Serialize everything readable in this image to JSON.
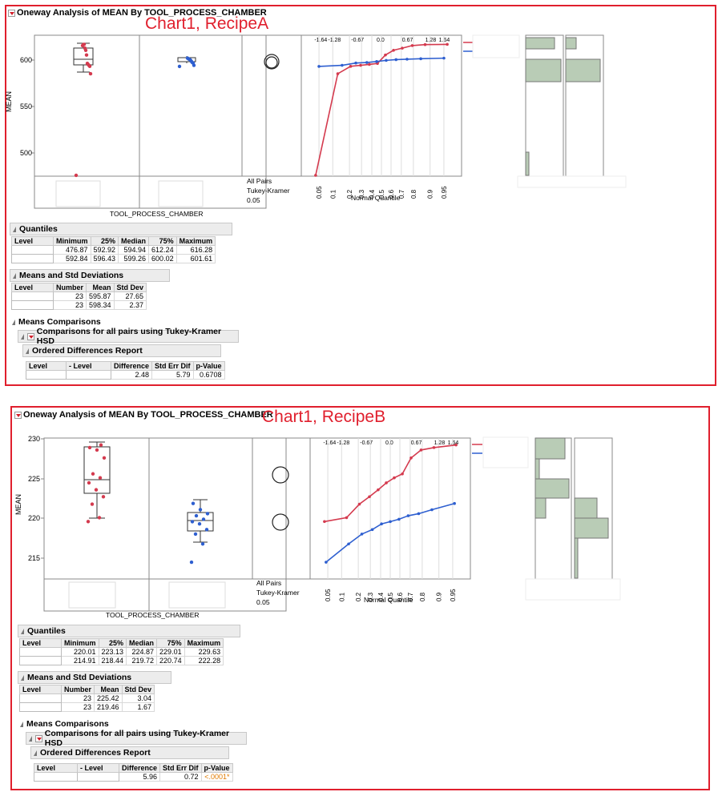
{
  "chartA": {
    "title": "Oneway Analysis of MEAN By TOOL_PROCESS_CHAMBER",
    "overlay": "Chart1, RecipeA",
    "y_axis_label": "MEAN",
    "y_ticks": [
      "600",
      "550",
      "500"
    ],
    "x_axis_label": "TOOL_PROCESS_CHAMBER",
    "comparison_label_1": "All Pairs",
    "comparison_label_2": "Tukey-Kramer",
    "alpha": "0.05",
    "normal_quantile_label": "Normal Quantile",
    "top_ticks": [
      "-1.64",
      "-1.28",
      "-0.67",
      "0.0",
      "0.67",
      "1.28",
      "1.64"
    ],
    "bottom_ticks": [
      "0.05",
      "0.1",
      "0.2",
      "0.3",
      "0.4",
      "0.5",
      "0.6",
      "0.7",
      "0.8",
      "0.9",
      "0.95"
    ],
    "quantiles": {
      "title": "Quantiles",
      "headers": [
        "Level",
        "Minimum",
        "25%",
        "Median",
        "75%",
        "Maximum"
      ],
      "rows": [
        [
          "",
          "476.87",
          "592.92",
          "594.94",
          "612.24",
          "616.28"
        ],
        [
          "",
          "592.84",
          "596.43",
          "599.26",
          "600.02",
          "601.61"
        ]
      ]
    },
    "means": {
      "title": "Means and Std Deviations",
      "headers": [
        "Level",
        "Number",
        "Mean",
        "Std Dev"
      ],
      "rows": [
        [
          "",
          "23",
          "595.87",
          "27.65"
        ],
        [
          "",
          "23",
          "598.34",
          "2.37"
        ]
      ]
    },
    "means_comparisons": "Means Comparisons",
    "comparisons_title": "Comparisons for all pairs using Tukey-Kramer HSD",
    "ordered": {
      "title": "Ordered Differences Report",
      "headers": [
        "Level",
        "- Level",
        "Difference",
        "Std Err Dif",
        "p-Value"
      ],
      "rows": [
        [
          "",
          "",
          "2.48",
          "5.79",
          "0.6708"
        ]
      ]
    }
  },
  "chartB": {
    "title": "Oneway Analysis of MEAN By TOOL_PROCESS_CHAMBER",
    "overlay": "Chart1, RecipeB",
    "y_axis_label": "MEAN",
    "y_ticks": [
      "230",
      "225",
      "220",
      "215"
    ],
    "x_axis_label": "TOOL_PROCESS_CHAMBER",
    "comparison_label_1": "All Pairs",
    "comparison_label_2": "Tukey-Kramer",
    "alpha": "0.05",
    "normal_quantile_label": "Normal Quantile",
    "top_ticks": [
      "-1.64",
      "-1.28",
      "-0.67",
      "0.0",
      "0.67",
      "1.28",
      "1.64"
    ],
    "bottom_ticks": [
      "0.05",
      "0.1",
      "0.2",
      "0.3",
      "0.4",
      "0.5",
      "0.6",
      "0.7",
      "0.8",
      "0.9",
      "0.95"
    ],
    "quantiles": {
      "title": "Quantiles",
      "headers": [
        "Level",
        "Minimum",
        "25%",
        "Median",
        "75%",
        "Maximum"
      ],
      "rows": [
        [
          "",
          "220.01",
          "223.13",
          "224.87",
          "229.01",
          "229.63"
        ],
        [
          "",
          "214.91",
          "218.44",
          "219.72",
          "220.74",
          "222.28"
        ]
      ]
    },
    "means": {
      "title": "Means and Std Deviations",
      "headers": [
        "Level",
        "Number",
        "Mean",
        "Std Dev"
      ],
      "rows": [
        [
          "",
          "23",
          "225.42",
          "3.04"
        ],
        [
          "",
          "23",
          "219.46",
          "1.67"
        ]
      ]
    },
    "means_comparisons": "Means Comparisons",
    "comparisons_title": "Comparisons for all pairs using Tukey-Kramer HSD",
    "ordered": {
      "title": "Ordered Differences Report",
      "headers": [
        "Level",
        "- Level",
        "Difference",
        "Std Err Dif",
        "p-Value"
      ],
      "rows": [
        [
          "",
          "",
          "5.96",
          "0.72",
          "<.0001*"
        ]
      ]
    }
  },
  "chart_data": [
    {
      "type": "scatter",
      "name": "RecipeA oneway",
      "ylabel": "MEAN",
      "ylim": [
        476,
        626
      ],
      "series": [
        {
          "color": "#d43a4e",
          "values": [
            476.87,
            585,
            592.92,
            594,
            594.94,
            596,
            605,
            610,
            612.24,
            616.28,
            616,
            615
          ]
        },
        {
          "color": "#2e5fd0",
          "values": [
            592.84,
            594,
            596.43,
            597,
            598,
            599.26,
            600.02,
            600.5,
            601,
            601.61
          ]
        }
      ]
    },
    {
      "type": "scatter",
      "name": "RecipeB oneway",
      "ylabel": "MEAN",
      "ylim": [
        212.8,
        230.5
      ],
      "series": [
        {
          "color": "#d43a4e",
          "values": [
            220.01,
            220.5,
            222.2,
            223.13,
            224,
            224.87,
            225.5,
            226,
            228,
            229,
            229.3,
            229.63
          ]
        },
        {
          "color": "#2e5fd0",
          "values": [
            214.91,
            217.2,
            218.44,
            219,
            219.72,
            220,
            220.3,
            220.74,
            221,
            221.5,
            222.28
          ]
        }
      ]
    }
  ],
  "colors": {
    "frame": "#e01f2d",
    "red": "#d43a4e",
    "blue": "#2e5fd0",
    "hist": "#b9ccb6"
  }
}
